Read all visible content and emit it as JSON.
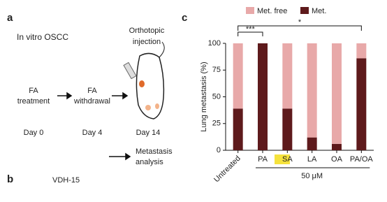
{
  "panel_labels": [
    "a",
    "b",
    "c"
  ],
  "panel_a": {
    "title": "In vitro OSCC",
    "injection": [
      "Orthotopic",
      "injection"
    ],
    "steps": [
      [
        "FA",
        "treatment"
      ],
      [
        "FA",
        "withdrawal"
      ]
    ],
    "days": [
      "Day 0",
      "Day 4",
      "Day 14"
    ],
    "analysis": [
      "Metastasis",
      "analysis"
    ]
  },
  "panel_b": {
    "title": "VDH-15"
  },
  "chart_data": {
    "type": "stacked-bar",
    "ylabel": "Lung metastasis (%)",
    "categories": [
      "Untreated",
      "PA",
      "SA",
      "LA",
      "OA",
      "PA/OA"
    ],
    "series": [
      {
        "name": "Met. free",
        "color": "#e8a9a9",
        "values": [
          61,
          0,
          61,
          88,
          94,
          14
        ]
      },
      {
        "name": "Met.",
        "color": "#5e1a1c",
        "values": [
          39,
          100,
          39,
          12,
          6,
          86
        ]
      }
    ],
    "ylim": [
      0,
      100
    ],
    "yticks": [
      0,
      25,
      50,
      75,
      100
    ],
    "significance": [
      "***",
      "*"
    ],
    "group_label": "50 μM"
  }
}
